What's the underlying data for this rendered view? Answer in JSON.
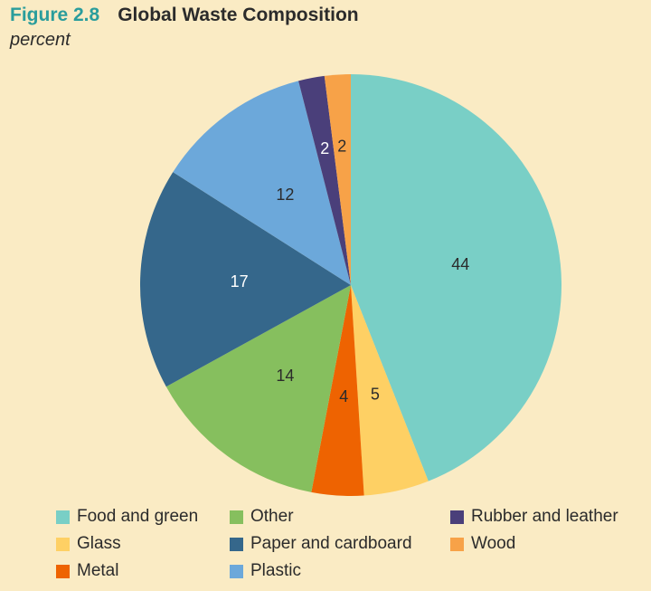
{
  "header": {
    "figure_number": "Figure 2.8",
    "title": "Global Waste Composition",
    "subtitle": "percent"
  },
  "chart_data": {
    "type": "pie",
    "title": "Global Waste Composition",
    "subtitle": "percent",
    "start_angle_deg": 0,
    "direction": "clockwise",
    "slices": [
      {
        "label": "Food and green",
        "value": 44,
        "color": "#79cfc6"
      },
      {
        "label": "Glass",
        "value": 5,
        "color": "#fed064"
      },
      {
        "label": "Metal",
        "value": 4,
        "color": "#ee6301"
      },
      {
        "label": "Other",
        "value": 14,
        "color": "#86bf5e"
      },
      {
        "label": "Paper and cardboard",
        "value": 17,
        "color": "#35678b"
      },
      {
        "label": "Plastic",
        "value": 12,
        "color": "#6ca8da"
      },
      {
        "label": "Rubber and leather",
        "value": 2,
        "color": "#4a3f7a"
      },
      {
        "label": "Wood",
        "value": 2,
        "color": "#f7a248"
      }
    ],
    "legend": {
      "placement": "bottom",
      "columns": [
        [
          "Food and green",
          "Glass",
          "Metal"
        ],
        [
          "Other",
          "Paper and cardboard",
          "Plastic"
        ],
        [
          "Rubber and leather",
          "Wood"
        ]
      ]
    }
  }
}
